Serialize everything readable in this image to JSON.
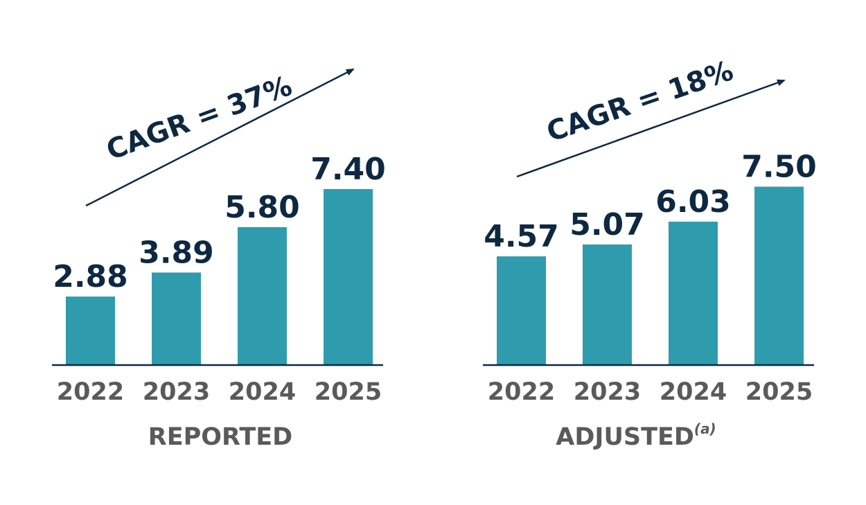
{
  "colors": {
    "bar": "#2e9cad",
    "text_dark": "#0e2841",
    "text_gray": "#5a5a5a",
    "axis": "#0e2841"
  },
  "chart_data": [
    {
      "type": "bar",
      "title": "REPORTED",
      "title_superscript": "",
      "categories": [
        "2022",
        "2023",
        "2024",
        "2025"
      ],
      "values": [
        2.88,
        3.89,
        5.8,
        7.4
      ],
      "value_labels": [
        "2.88",
        "3.89",
        "5.80",
        "7.40"
      ],
      "annotation": "CAGR = 37%",
      "ylim": [
        0,
        8.3
      ],
      "grid": false
    },
    {
      "type": "bar",
      "title": "ADJUSTED",
      "title_superscript": "(a)",
      "categories": [
        "2022",
        "2023",
        "2024",
        "2025"
      ],
      "values": [
        4.57,
        5.07,
        6.03,
        7.5
      ],
      "value_labels": [
        "4.57",
        "5.07",
        "6.03",
        "7.50"
      ],
      "annotation": "CAGR = 18%",
      "ylim": [
        0,
        8.3
      ],
      "grid": false
    }
  ]
}
